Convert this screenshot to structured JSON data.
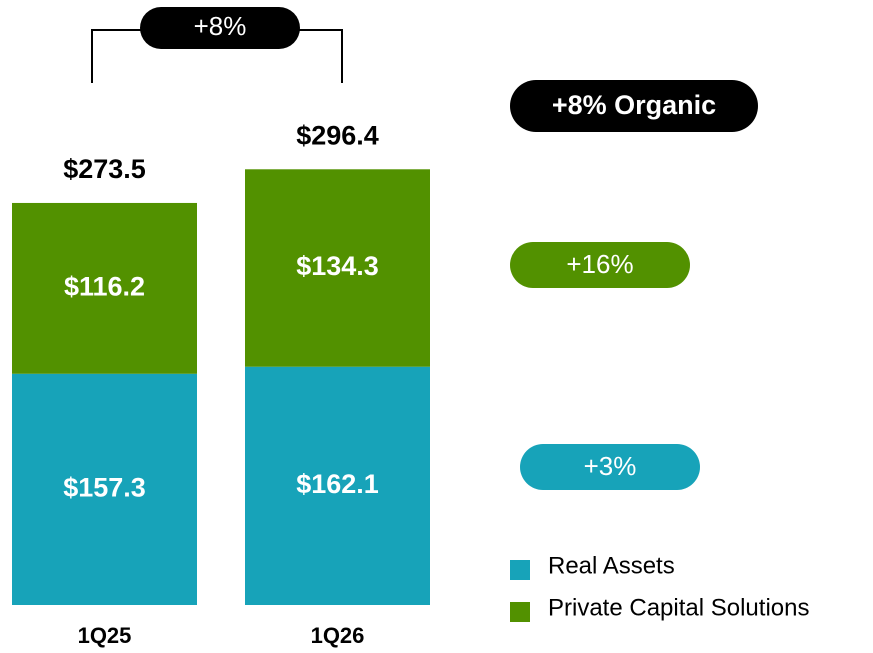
{
  "chart_data": {
    "type": "bar",
    "stacked": true,
    "categories": [
      "1Q25",
      "1Q26"
    ],
    "series": [
      {
        "name": "Real Assets",
        "color": "#17a3b9",
        "values": [
          157.3,
          162.1
        ],
        "value_labels": [
          "$157.3",
          "$162.1"
        ]
      },
      {
        "name": "Private Capital Solutions",
        "color": "#529100",
        "values": [
          116.2,
          134.3
        ],
        "value_labels": [
          "$116.2",
          "$134.3"
        ]
      }
    ],
    "totals": [
      273.5,
      296.4
    ],
    "total_labels": [
      "$273.5",
      "$296.4"
    ],
    "annotations": [
      "+8%",
      "+8% Organic",
      "+16%",
      "+3%"
    ]
  }
}
